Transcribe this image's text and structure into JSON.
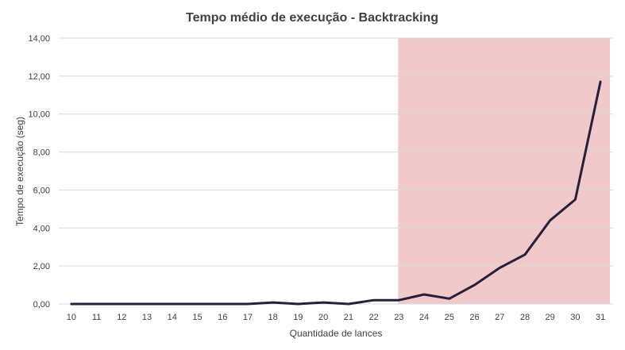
{
  "chart_data": {
    "type": "line",
    "title": "Tempo médio de execução - Backtracking",
    "xlabel": "Quantidade de lances",
    "ylabel": "Tempo de execução (seg)",
    "ylim": [
      0,
      14
    ],
    "yticks": [
      "0,00",
      "2,00",
      "4,00",
      "6,00",
      "8,00",
      "10,00",
      "12,00",
      "14,00"
    ],
    "ytick_values": [
      0,
      2,
      4,
      6,
      8,
      10,
      12,
      14
    ],
    "categories": [
      "10",
      "11",
      "12",
      "13",
      "14",
      "15",
      "16",
      "17",
      "18",
      "19",
      "20",
      "21",
      "22",
      "23",
      "24",
      "25",
      "26",
      "27",
      "28",
      "29",
      "30",
      "31"
    ],
    "series": [
      {
        "values": [
          0,
          0,
          0,
          0,
          0,
          0,
          0,
          0,
          0.08,
          0,
          0.08,
          0,
          0.2,
          0.2,
          0.5,
          0.28,
          1.0,
          1.9,
          2.6,
          4.4,
          5.5,
          11.7
        ]
      }
    ],
    "highlight_region": {
      "from": "23",
      "to": "31",
      "color": "#f2c9cb"
    },
    "line_color": "#262038",
    "grid": true,
    "legend": "none"
  }
}
